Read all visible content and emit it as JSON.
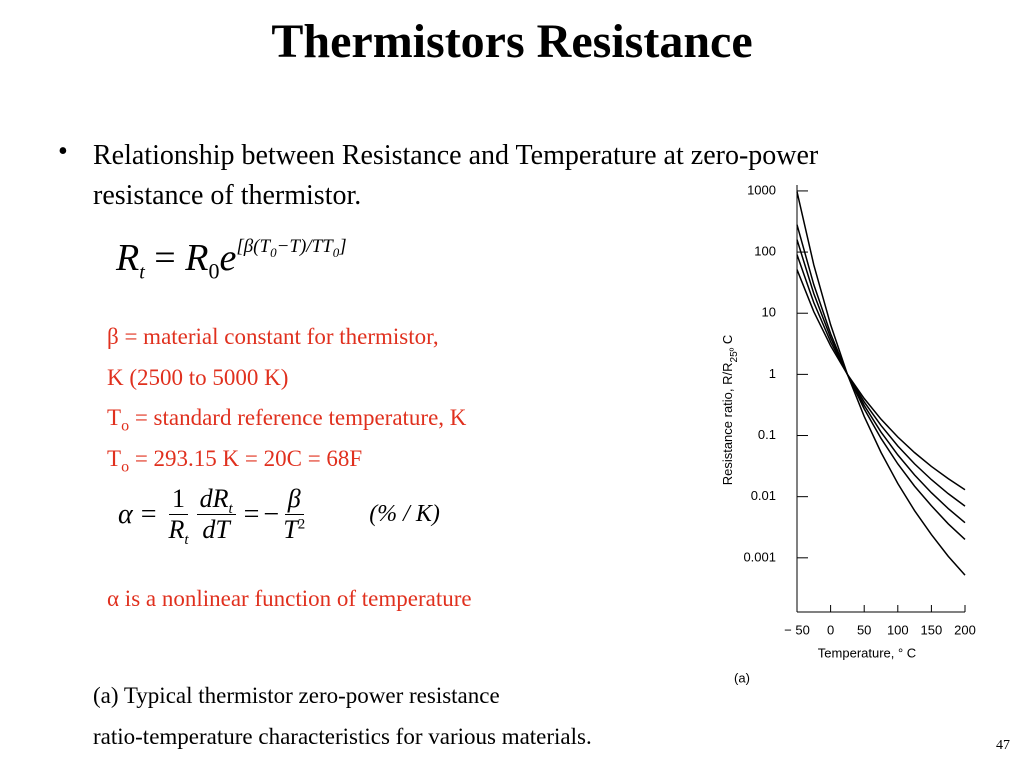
{
  "title": "Thermistors Resistance",
  "bullet": "Relationship between Resistance and Temperature at zero-power resistance of thermistor.",
  "formula1": [
    "R",
    "t",
    "=",
    "R",
    "0",
    "e",
    "[β(T",
    "0",
    "−T)/TT",
    "0",
    "]"
  ],
  "definitions": [
    [
      "β = material constant for thermistor,"
    ],
    [
      "K (2500 to 5000 K)"
    ],
    [
      "T",
      "o",
      "= standard reference temperature, K"
    ],
    [
      "T",
      "o",
      "= 293.15 K = 20C = 68F"
    ]
  ],
  "formula2": [
    "α",
    "=",
    "1",
    "R",
    "t",
    "dR",
    "t",
    "dT",
    "=",
    "−",
    "β",
    "T",
    "2",
    "(% / K)"
  ],
  "note": "α is a nonlinear function of temperature",
  "caption": [
    "(a) Typical thermistor zero-power resistance",
    "ratio-temperature characteristics for various materials."
  ],
  "page_number": "47",
  "chart_data": {
    "type": "line",
    "label": "(a)",
    "x_label": "Temperature, ° C",
    "y_label": [
      "Resistance ratio, R/R",
      "25º",
      " C"
    ],
    "log_y": true,
    "color": "#000000",
    "x": [
      -50,
      -25,
      0,
      25,
      50,
      75,
      100,
      125,
      150,
      175,
      200
    ],
    "series": [
      {
        "values": [
          970,
          61.7,
          6.5,
          1,
          0.205,
          0.053,
          0.0164,
          0.0059,
          0.0024,
          0.00106,
          0.00052
        ]
      },
      {
        "values": [
          280,
          29.3,
          4.64,
          1,
          0.273,
          0.09,
          0.0344,
          0.0148,
          0.0071,
          0.0036,
          0.002
        ]
      },
      {
        "values": [
          160,
          20.9,
          3.98,
          1,
          0.311,
          0.114,
          0.0482,
          0.0226,
          0.0116,
          0.0064,
          0.00376
        ]
      },
      {
        "values": [
          90.8,
          14.9,
          3.41,
          1,
          0.354,
          0.146,
          0.0675,
          0.0344,
          0.019,
          0.0112,
          0.007
        ]
      },
      {
        "values": [
          51.7,
          10.6,
          2.93,
          1,
          0.403,
          0.185,
          0.0945,
          0.0525,
          0.0312,
          0.0197,
          0.013
        ]
      }
    ],
    "xlim": [
      -50,
      200
    ],
    "xticks": [
      {
        "value": -50,
        "label": "− 50"
      },
      0,
      50,
      100,
      150,
      200
    ],
    "ylim": [
      0.00013,
      1250
    ],
    "yticks": [
      1000,
      100,
      10,
      1,
      0.1,
      0.01,
      0.001
    ]
  }
}
